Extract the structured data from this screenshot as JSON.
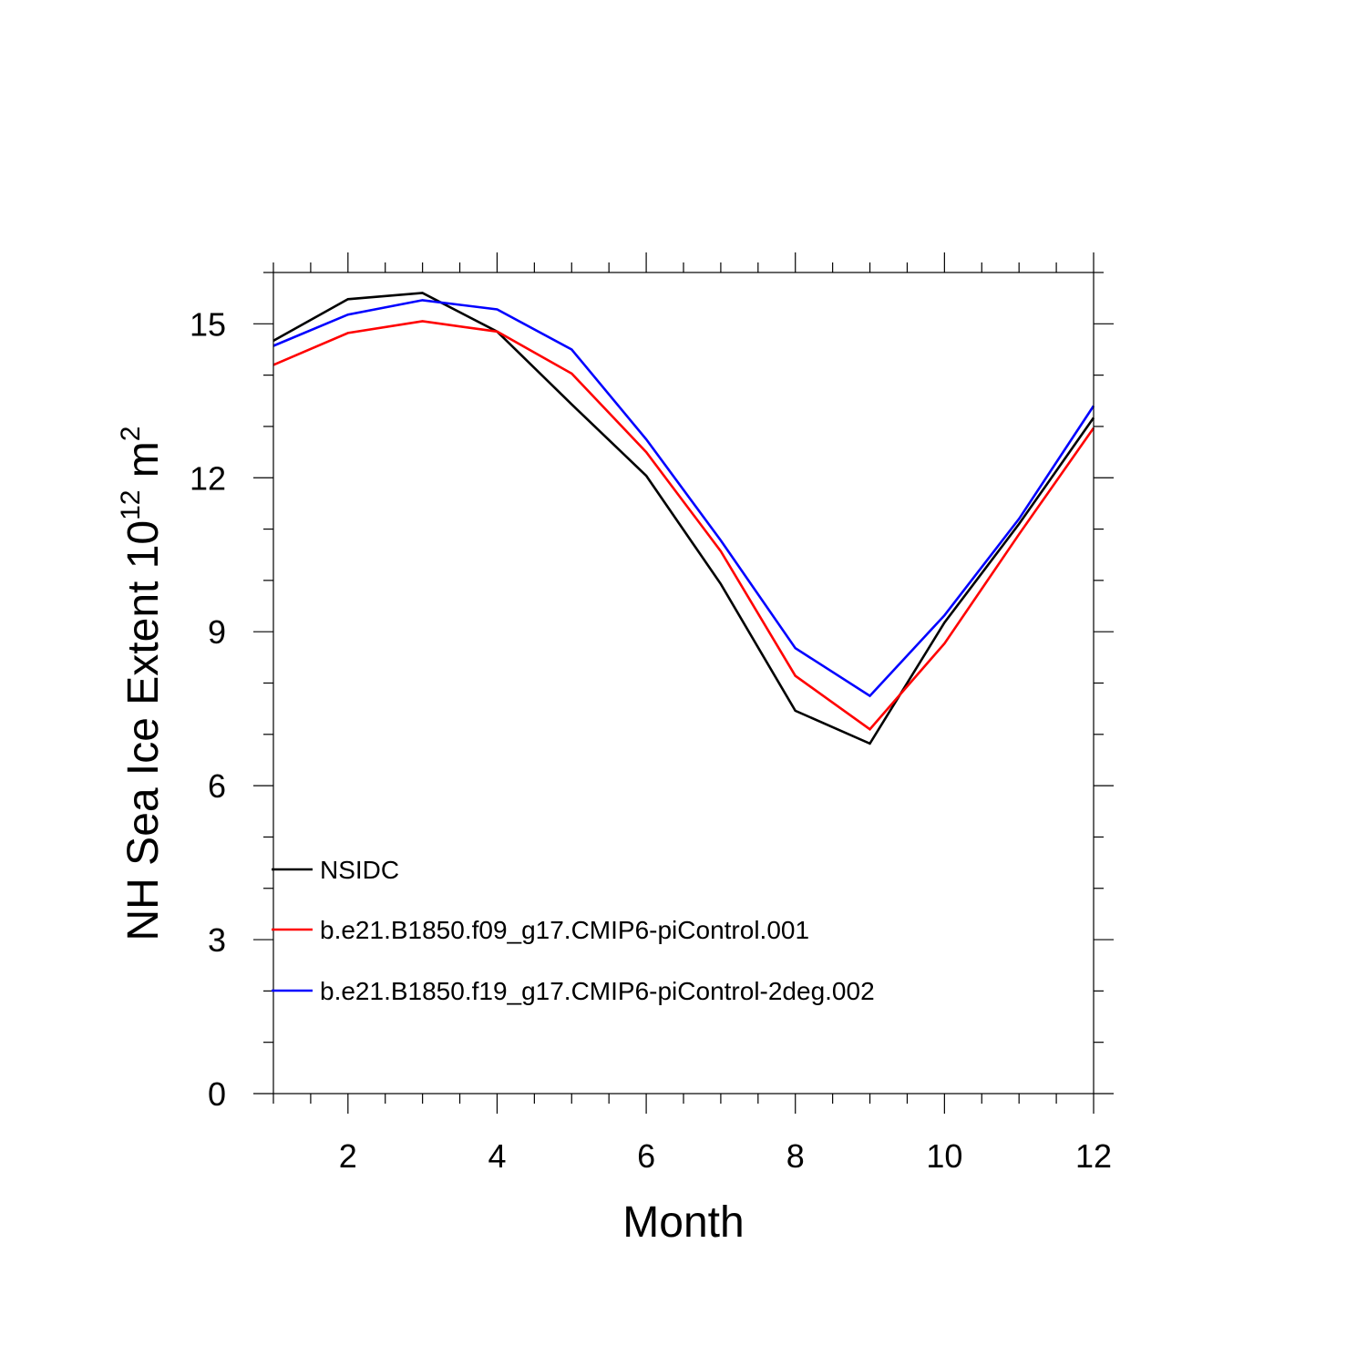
{
  "chart_data": {
    "type": "line",
    "title": "",
    "xlabel": "Month",
    "ylabel": "NH Sea Ice Extent 10",
    "ylabel_superscript": "12",
    "ylabel_unit": " m",
    "ylabel_unit_superscript": "2",
    "xlim": [
      1,
      12
    ],
    "ylim": [
      0,
      16
    ],
    "x_ticks": [
      2,
      4,
      6,
      8,
      10,
      12
    ],
    "x_tick_labels": [
      "2",
      "4",
      "6",
      "8",
      "10",
      "12"
    ],
    "y_ticks": [
      0,
      3,
      6,
      9,
      12,
      15
    ],
    "y_tick_labels": [
      "0",
      "3",
      "6",
      "9",
      "12",
      "15"
    ],
    "legend_position": "lower-left",
    "grid": false,
    "x": [
      1,
      2,
      3,
      4,
      5,
      6,
      7,
      8,
      9,
      10,
      11,
      12
    ],
    "series": [
      {
        "name": "NSIDC",
        "color": "#000000",
        "values": [
          14.67,
          15.48,
          15.6,
          14.85,
          13.43,
          12.04,
          9.93,
          7.46,
          6.82,
          9.18,
          11.1,
          13.17
        ]
      },
      {
        "name": "b.e21.B1850.f09_g17.CMIP6-piControl.001",
        "color": "#ff0000",
        "values": [
          14.2,
          14.82,
          15.05,
          14.85,
          14.03,
          12.5,
          10.57,
          8.14,
          7.1,
          8.77,
          10.9,
          12.97
        ]
      },
      {
        "name": "b.e21.B1850.f19_g17.CMIP6-piControl-2deg.002",
        "color": "#0000ff",
        "values": [
          14.57,
          15.18,
          15.46,
          15.28,
          14.5,
          12.75,
          10.78,
          8.68,
          7.75,
          9.32,
          11.2,
          13.4
        ]
      }
    ]
  }
}
